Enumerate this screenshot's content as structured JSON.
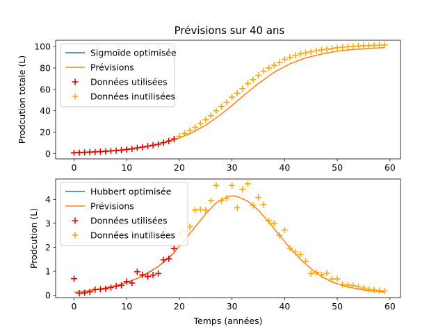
{
  "figure": {
    "title": "Prévisions sur 40 ans"
  },
  "chart_data": [
    {
      "type": "line+scatter",
      "title": "Prévisions sur 40 ans",
      "xlabel": "",
      "ylabel": "Prodcution totale (L)",
      "xlim": [
        -3.5,
        62
      ],
      "ylim": [
        -5,
        106
      ],
      "xticks": [
        0,
        10,
        20,
        30,
        40,
        50,
        60
      ],
      "yticks": [
        0,
        20,
        40,
        60,
        80,
        100
      ],
      "legend_position": "upper-left",
      "colors": {
        "fit": "#1f77b4",
        "forecast": "#ff7f0e",
        "used": "#e00000",
        "unused": "#ffa500"
      },
      "series": [
        {
          "name": "Sigmoïde optimisée",
          "kind": "line",
          "color": "#1f77b4",
          "x": [
            0,
            2,
            4,
            6,
            8,
            10,
            12,
            14,
            16,
            18,
            19
          ],
          "y": [
            1,
            1.3,
            1.7,
            2.2,
            2.9,
            3.9,
            5.1,
            6.7,
            8.8,
            11.4,
            13.0
          ]
        },
        {
          "name": "Prévisions",
          "kind": "line",
          "color": "#ff7f0e",
          "x": [
            0,
            4,
            8,
            12,
            16,
            19,
            22,
            25,
            28,
            30,
            32,
            35,
            38,
            41,
            44,
            47,
            50,
            53,
            56,
            59
          ],
          "y": [
            1,
            1.7,
            2.9,
            5.1,
            8.8,
            13.0,
            18.5,
            26.5,
            37.0,
            45.0,
            53.5,
            65.5,
            76.0,
            84.0,
            89.5,
            93.0,
            95.8,
            97.3,
            98.3,
            99.0
          ]
        },
        {
          "name": "Données utilisées",
          "kind": "scatter",
          "marker": "+",
          "color": "#e00000",
          "x": [
            0,
            1,
            2,
            3,
            4,
            5,
            6,
            7,
            8,
            9,
            10,
            11,
            12,
            13,
            14,
            15,
            16,
            17,
            18,
            19
          ],
          "y": [
            0.7,
            0.8,
            1.0,
            1.2,
            1.5,
            1.7,
            2.0,
            2.4,
            2.7,
            3.1,
            3.7,
            4.3,
            5.3,
            6.1,
            6.9,
            7.8,
            8.7,
            10.2,
            11.7,
            13.6
          ]
        },
        {
          "name": "Données inutilisées",
          "kind": "scatter",
          "marker": "+",
          "color": "#ffa500",
          "x": [
            20,
            21,
            22,
            23,
            24,
            25,
            26,
            27,
            28,
            29,
            30,
            31,
            32,
            33,
            34,
            35,
            36,
            37,
            38,
            39,
            40,
            41,
            42,
            43,
            44,
            45,
            46,
            47,
            48,
            49,
            50,
            51,
            52,
            53,
            54,
            55,
            56,
            57,
            58,
            59
          ],
          "y": [
            16.1,
            18.8,
            21.7,
            24.5,
            28.1,
            31.7,
            35.3,
            40.0,
            44.0,
            47.9,
            52.7,
            56.4,
            60.8,
            65.5,
            69.1,
            73.2,
            77.0,
            80.1,
            82.6,
            85.3,
            88.1,
            90.0,
            91.8,
            93.3,
            94.2,
            95.2,
            96.1,
            97.0,
            97.6,
            98.3,
            99.0,
            99.5,
            99.9,
            100.3,
            100.6,
            100.9,
            101.0,
            101.2,
            101.4,
            101.6
          ]
        }
      ]
    },
    {
      "type": "line+scatter",
      "title": "",
      "xlabel": "Temps (années)",
      "ylabel": "Prodcution (L)",
      "xlim": [
        -3.5,
        62
      ],
      "ylim": [
        -0.1,
        4.85
      ],
      "xticks": [
        0,
        10,
        20,
        30,
        40,
        50,
        60
      ],
      "yticks": [
        0,
        1,
        2,
        3,
        4
      ],
      "legend_position": "upper-left",
      "colors": {
        "fit": "#1f77b4",
        "forecast": "#ff7f0e",
        "used": "#e00000",
        "unused": "#ffa500"
      },
      "series": [
        {
          "name": "Hubbert optimisée",
          "kind": "line",
          "color": "#1f77b4",
          "x": [
            0,
            2,
            4,
            6,
            8,
            10,
            12,
            14,
            16,
            18,
            19
          ],
          "y": [
            0.12,
            0.16,
            0.22,
            0.3,
            0.4,
            0.53,
            0.7,
            0.92,
            1.2,
            1.55,
            1.78
          ]
        },
        {
          "name": "Prévisions",
          "kind": "line",
          "color": "#ff7f0e",
          "x": [
            0,
            4,
            8,
            12,
            16,
            19,
            21,
            23,
            25,
            27,
            29,
            30,
            31,
            33,
            35,
            37,
            39,
            41,
            43,
            45,
            47,
            49,
            51,
            53,
            55,
            57,
            59
          ],
          "y": [
            0.12,
            0.22,
            0.4,
            0.7,
            1.2,
            1.78,
            2.3,
            2.85,
            3.4,
            3.85,
            4.1,
            4.15,
            4.12,
            3.92,
            3.55,
            3.05,
            2.5,
            1.98,
            1.5,
            1.1,
            0.78,
            0.55,
            0.4,
            0.3,
            0.22,
            0.17,
            0.13
          ]
        },
        {
          "name": "Données utilisées",
          "kind": "scatter",
          "marker": "+",
          "color": "#e00000",
          "x": [
            0,
            1,
            2,
            3,
            4,
            5,
            6,
            7,
            8,
            9,
            10,
            11,
            12,
            13,
            14,
            15,
            16,
            17,
            18,
            19
          ],
          "y": [
            0.69,
            0.08,
            0.1,
            0.14,
            0.24,
            0.25,
            0.27,
            0.32,
            0.38,
            0.41,
            0.57,
            0.51,
            0.98,
            0.85,
            0.78,
            0.84,
            0.91,
            1.48,
            1.52,
            1.95
          ]
        },
        {
          "name": "Données inutilisées",
          "kind": "scatter",
          "marker": "+",
          "color": "#ffa500",
          "x": [
            20,
            21,
            22,
            23,
            24,
            25,
            26,
            27,
            28,
            29,
            30,
            31,
            32,
            33,
            34,
            35,
            36,
            37,
            38,
            39,
            40,
            41,
            42,
            43,
            44,
            45,
            46,
            47,
            48,
            49,
            50,
            51,
            52,
            53,
            54,
            55,
            56,
            57,
            58,
            59
          ],
          "y": [
            2.55,
            2.65,
            2.85,
            3.55,
            3.58,
            3.55,
            3.95,
            4.58,
            3.95,
            4.05,
            4.58,
            3.65,
            4.42,
            4.65,
            3.75,
            4.08,
            3.78,
            3.1,
            3.0,
            2.5,
            2.72,
            1.96,
            1.8,
            1.7,
            1.42,
            0.9,
            0.95,
            0.85,
            0.92,
            0.68,
            0.68,
            0.45,
            0.42,
            0.4,
            0.35,
            0.3,
            0.25,
            0.22,
            0.2,
            0.18
          ]
        }
      ]
    }
  ]
}
